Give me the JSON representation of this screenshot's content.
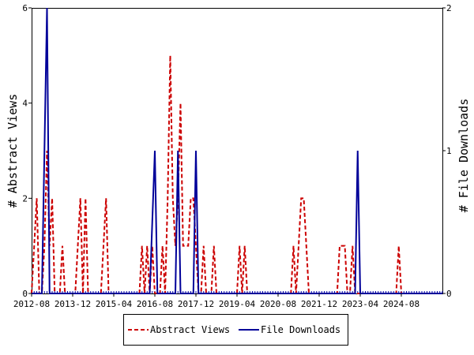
{
  "chart_data": {
    "type": "line",
    "ylabel_left": "# Abstract Views",
    "ylabel_right": "# File Downloads",
    "x_ticks": [
      "2012-08",
      "2013-12",
      "2015-04",
      "2016-08",
      "2017-12",
      "2019-04",
      "2020-08",
      "2021-12",
      "2023-04",
      "2024-08"
    ],
    "x_range": [
      "2012-08",
      "2025-12"
    ],
    "y_left_range": [
      0,
      6
    ],
    "y_left_ticks": [
      "0",
      "2",
      "4",
      "6"
    ],
    "y_right_range": [
      0,
      2
    ],
    "y_right_ticks": [
      "0",
      "1",
      "2"
    ],
    "legend_position": "bottom",
    "series": [
      {
        "name": "Abstract Views",
        "axis": "left",
        "color": "#cc0000",
        "style": "dashed",
        "points": [
          [
            "2012-08",
            0
          ],
          [
            "2012-09",
            1
          ],
          [
            "2012-10",
            2
          ],
          [
            "2012-11",
            0
          ],
          [
            "2012-12",
            0
          ],
          [
            "2013-01",
            1
          ],
          [
            "2013-02",
            3
          ],
          [
            "2013-03",
            1
          ],
          [
            "2013-04",
            2
          ],
          [
            "2013-05",
            0
          ],
          [
            "2013-06",
            0
          ],
          [
            "2013-07",
            0
          ],
          [
            "2013-08",
            1
          ],
          [
            "2013-09",
            0
          ],
          [
            "2013-10",
            0
          ],
          [
            "2013-11",
            0
          ],
          [
            "2013-12",
            0
          ],
          [
            "2014-01",
            0
          ],
          [
            "2014-02",
            1
          ],
          [
            "2014-03",
            2
          ],
          [
            "2014-04",
            0
          ],
          [
            "2014-05",
            2
          ],
          [
            "2014-06",
            0
          ],
          [
            "2014-07",
            0
          ],
          [
            "2014-08",
            0
          ],
          [
            "2014-09",
            0
          ],
          [
            "2014-10",
            0
          ],
          [
            "2014-11",
            0
          ],
          [
            "2014-12",
            1
          ],
          [
            "2015-01",
            2
          ],
          [
            "2015-02",
            0
          ],
          [
            "2015-03",
            0
          ],
          [
            "2015-04",
            0
          ],
          [
            "2015-05",
            0
          ],
          [
            "2015-06",
            0
          ],
          [
            "2015-07",
            0
          ],
          [
            "2015-08",
            0
          ],
          [
            "2015-09",
            0
          ],
          [
            "2015-10",
            0
          ],
          [
            "2015-11",
            0
          ],
          [
            "2015-12",
            0
          ],
          [
            "2016-01",
            0
          ],
          [
            "2016-02",
            0
          ],
          [
            "2016-03",
            1
          ],
          [
            "2016-04",
            0
          ],
          [
            "2016-05",
            1
          ],
          [
            "2016-06",
            0
          ],
          [
            "2016-07",
            1
          ],
          [
            "2016-08",
            0
          ],
          [
            "2016-09",
            0
          ],
          [
            "2016-10",
            0
          ],
          [
            "2016-11",
            1
          ],
          [
            "2016-12",
            0
          ],
          [
            "2017-01",
            2
          ],
          [
            "2017-02",
            5
          ],
          [
            "2017-03",
            2
          ],
          [
            "2017-04",
            1
          ],
          [
            "2017-05",
            2
          ],
          [
            "2017-06",
            4
          ],
          [
            "2017-07",
            1
          ],
          [
            "2017-08",
            1
          ],
          [
            "2017-09",
            1
          ],
          [
            "2017-10",
            2
          ],
          [
            "2017-11",
            2
          ],
          [
            "2017-12",
            1
          ],
          [
            "2018-01",
            0
          ],
          [
            "2018-02",
            0
          ],
          [
            "2018-03",
            1
          ],
          [
            "2018-04",
            0
          ],
          [
            "2018-05",
            0
          ],
          [
            "2018-06",
            0
          ],
          [
            "2018-07",
            1
          ],
          [
            "2018-08",
            0
          ],
          [
            "2018-09",
            0
          ],
          [
            "2018-10",
            0
          ],
          [
            "2018-11",
            0
          ],
          [
            "2018-12",
            0
          ],
          [
            "2019-01",
            0
          ],
          [
            "2019-02",
            0
          ],
          [
            "2019-03",
            0
          ],
          [
            "2019-04",
            0
          ],
          [
            "2019-05",
            1
          ],
          [
            "2019-06",
            0
          ],
          [
            "2019-07",
            1
          ],
          [
            "2019-08",
            0
          ],
          [
            "2019-09",
            0
          ],
          [
            "2019-10",
            0
          ],
          [
            "2019-11",
            0
          ],
          [
            "2019-12",
            0
          ],
          [
            "2020-01",
            0
          ],
          [
            "2020-02",
            0
          ],
          [
            "2020-03",
            0
          ],
          [
            "2020-04",
            0
          ],
          [
            "2020-05",
            0
          ],
          [
            "2020-06",
            0
          ],
          [
            "2020-07",
            0
          ],
          [
            "2020-08",
            0
          ],
          [
            "2020-09",
            0
          ],
          [
            "2020-10",
            0
          ],
          [
            "2020-11",
            0
          ],
          [
            "2020-12",
            0
          ],
          [
            "2021-01",
            0
          ],
          [
            "2021-02",
            1
          ],
          [
            "2021-03",
            0
          ],
          [
            "2021-04",
            1
          ],
          [
            "2021-05",
            2
          ],
          [
            "2021-06",
            2
          ],
          [
            "2021-07",
            1
          ],
          [
            "2021-08",
            0
          ],
          [
            "2021-09",
            0
          ],
          [
            "2021-10",
            0
          ],
          [
            "2021-11",
            0
          ],
          [
            "2021-12",
            0
          ],
          [
            "2022-01",
            0
          ],
          [
            "2022-02",
            0
          ],
          [
            "2022-03",
            0
          ],
          [
            "2022-04",
            0
          ],
          [
            "2022-05",
            0
          ],
          [
            "2022-06",
            0
          ],
          [
            "2022-07",
            0
          ],
          [
            "2022-08",
            1
          ],
          [
            "2022-09",
            1
          ],
          [
            "2022-10",
            1
          ],
          [
            "2022-11",
            0
          ],
          [
            "2022-12",
            0
          ],
          [
            "2023-01",
            1
          ],
          [
            "2023-02",
            0
          ],
          [
            "2023-03",
            0
          ],
          [
            "2023-04",
            0
          ],
          [
            "2023-05",
            0
          ],
          [
            "2023-06",
            0
          ],
          [
            "2023-07",
            0
          ],
          [
            "2023-08",
            0
          ],
          [
            "2023-09",
            0
          ],
          [
            "2023-10",
            0
          ],
          [
            "2023-11",
            0
          ],
          [
            "2023-12",
            0
          ],
          [
            "2024-01",
            0
          ],
          [
            "2024-02",
            0
          ],
          [
            "2024-03",
            0
          ],
          [
            "2024-04",
            0
          ],
          [
            "2024-05",
            0
          ],
          [
            "2024-06",
            0
          ],
          [
            "2024-07",
            1
          ],
          [
            "2024-08",
            0
          ],
          [
            "2024-09",
            0
          ],
          [
            "2024-10",
            0
          ],
          [
            "2024-11",
            0
          ],
          [
            "2024-12",
            0
          ],
          [
            "2025-01",
            0
          ],
          [
            "2025-02",
            0
          ],
          [
            "2025-03",
            0
          ],
          [
            "2025-04",
            0
          ],
          [
            "2025-05",
            0
          ],
          [
            "2025-06",
            0
          ],
          [
            "2025-07",
            0
          ],
          [
            "2025-08",
            0
          ],
          [
            "2025-09",
            0
          ],
          [
            "2025-10",
            0
          ],
          [
            "2025-11",
            0
          ],
          [
            "2025-12",
            0
          ]
        ]
      },
      {
        "name": "File Downloads",
        "axis": "right",
        "color": "#000099",
        "style": "solid",
        "points": [
          [
            "2012-08",
            0
          ],
          [
            "2012-09",
            0
          ],
          [
            "2012-10",
            0
          ],
          [
            "2012-11",
            0
          ],
          [
            "2012-12",
            0
          ],
          [
            "2013-01",
            1
          ],
          [
            "2013-02",
            2
          ],
          [
            "2013-03",
            0
          ],
          [
            "2013-04",
            0
          ],
          [
            "2013-05",
            0
          ],
          [
            "2016-06",
            0
          ],
          [
            "2016-07",
            0.5
          ],
          [
            "2016-08",
            1
          ],
          [
            "2016-09",
            0
          ],
          [
            "2016-10",
            0
          ],
          [
            "2016-11",
            0
          ],
          [
            "2016-12",
            0
          ],
          [
            "2017-01",
            0
          ],
          [
            "2017-02",
            0
          ],
          [
            "2017-03",
            0
          ],
          [
            "2017-04",
            0
          ],
          [
            "2017-05",
            1
          ],
          [
            "2017-06",
            0
          ],
          [
            "2017-07",
            0
          ],
          [
            "2017-08",
            0
          ],
          [
            "2017-09",
            0
          ],
          [
            "2017-10",
            0
          ],
          [
            "2017-11",
            0
          ],
          [
            "2017-12",
            1
          ],
          [
            "2018-01",
            0
          ],
          [
            "2018-02",
            0
          ],
          [
            "2023-01",
            0
          ],
          [
            "2023-02",
            0
          ],
          [
            "2023-03",
            1
          ],
          [
            "2023-04",
            0
          ],
          [
            "2023-05",
            0
          ],
          [
            "2025-12",
            0
          ]
        ]
      }
    ]
  }
}
